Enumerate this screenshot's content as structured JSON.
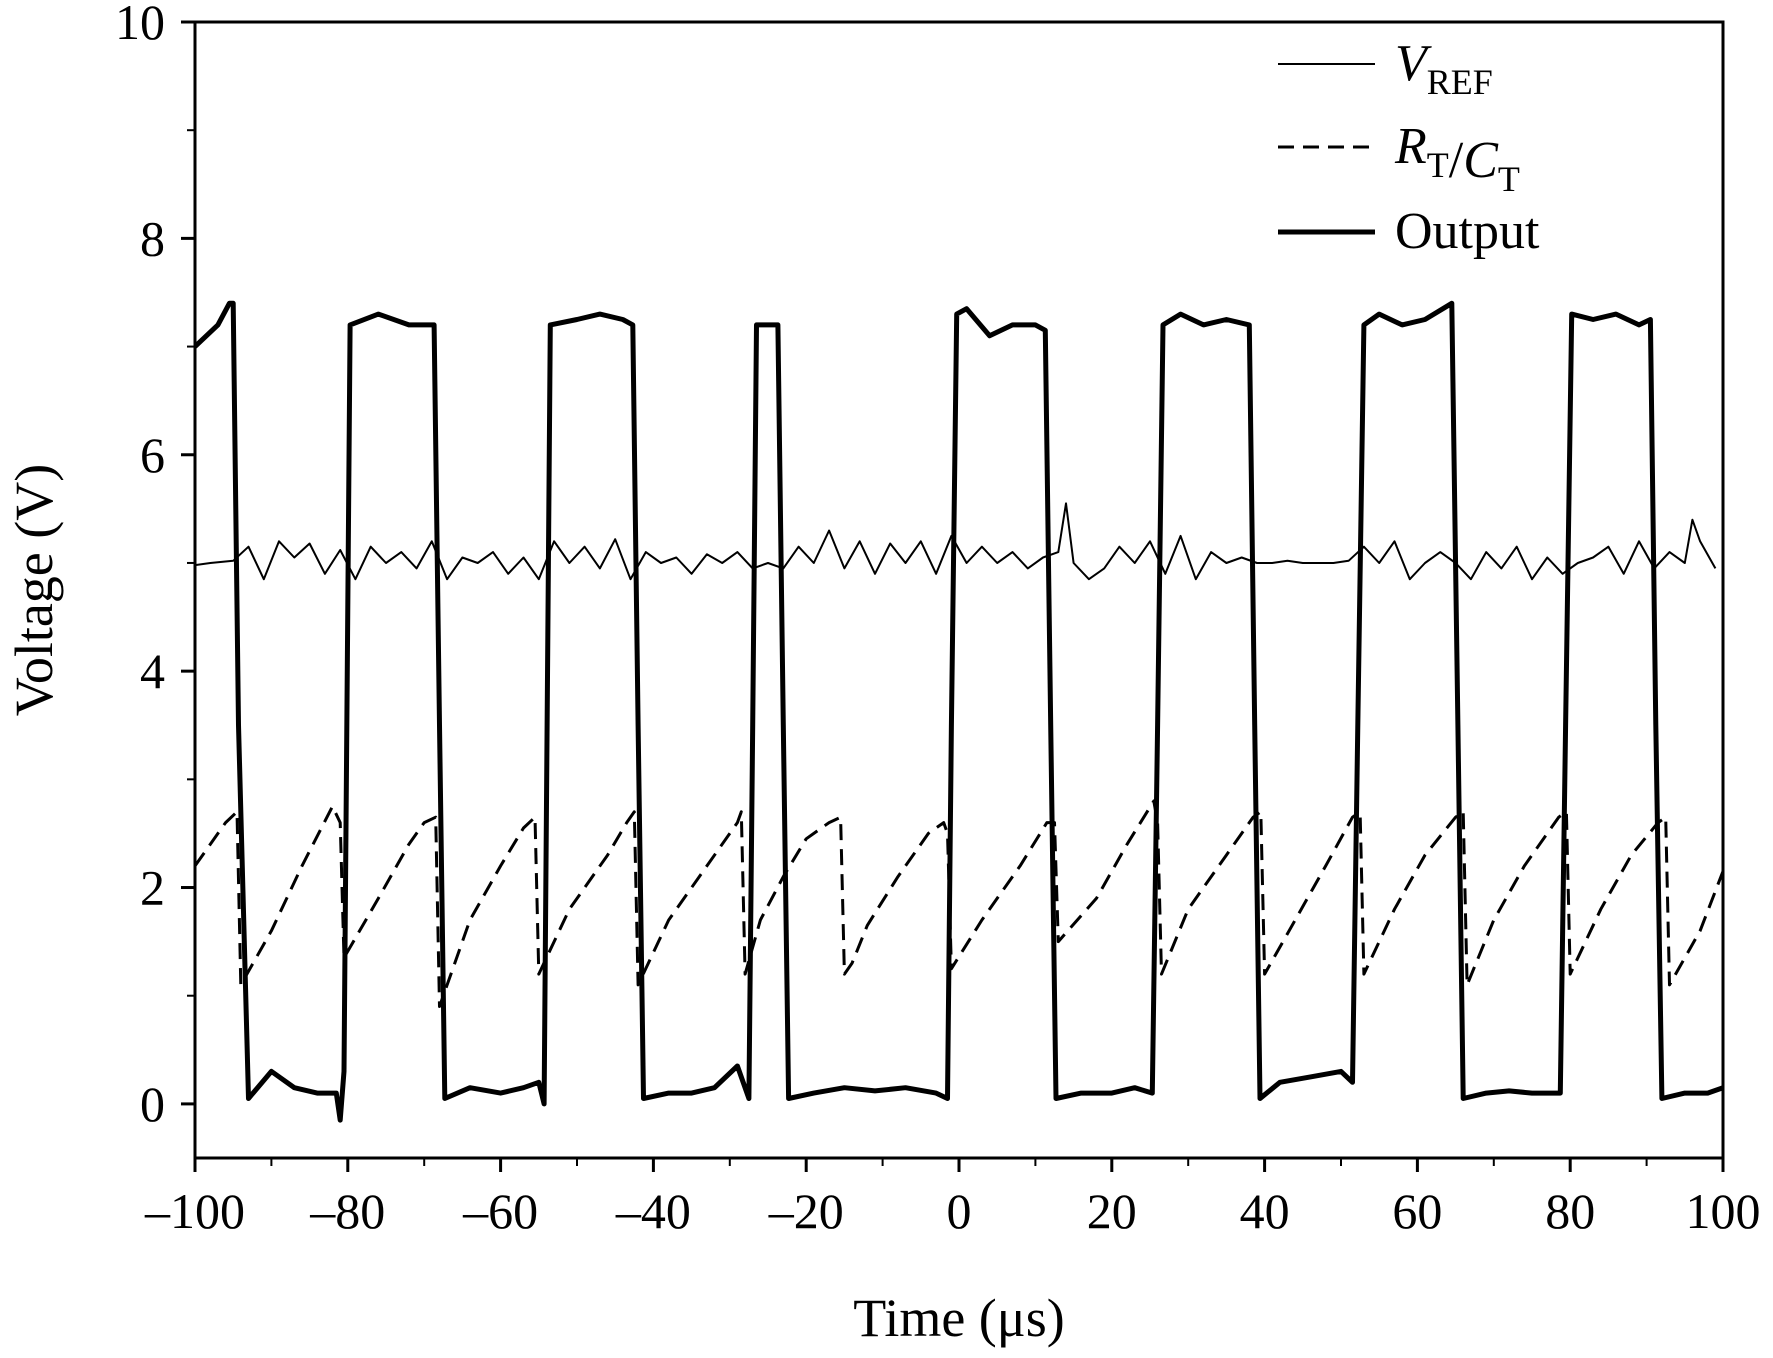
{
  "chart_data": {
    "type": "line",
    "xlabel": "Time (μs)",
    "ylabel": "Voltage (V)",
    "xlim": [
      -100,
      100
    ],
    "ylim": [
      -0.5,
      10
    ],
    "x_ticks": [
      -100,
      -80,
      -60,
      -40,
      -20,
      0,
      20,
      40,
      60,
      80,
      100
    ],
    "x_tick_labels": [
      "–100",
      "–80",
      "–60",
      "–40",
      "–20",
      "0",
      "20",
      "40",
      "60",
      "80",
      "100"
    ],
    "y_ticks": [
      0,
      2,
      4,
      6,
      8,
      10
    ],
    "y_tick_labels": [
      "0",
      "2",
      "4",
      "6",
      "8",
      "10"
    ],
    "grid": false,
    "legend_position": "top-right",
    "legend": [
      {
        "key": "vref",
        "main": "V",
        "sub": "REF",
        "style": "thin solid"
      },
      {
        "key": "rtct",
        "main1": "R",
        "sub1": "T",
        "sep": "/",
        "main2": "C",
        "sub2": "T",
        "style": "dashed"
      },
      {
        "key": "output",
        "label": "Output",
        "style": "thick solid"
      }
    ],
    "series": [
      {
        "key": "vref",
        "x": [
          -100,
          -98,
          -95,
          -93,
          -91,
          -89,
          -87,
          -85,
          -83,
          -81,
          -79,
          -77,
          -75,
          -73,
          -71,
          -69,
          -67,
          -65,
          -63,
          -61,
          -59,
          -57,
          -55,
          -53,
          -51,
          -49,
          -47,
          -45,
          -43,
          -41,
          -39,
          -37,
          -35,
          -33,
          -31,
          -29,
          -27,
          -25,
          -23,
          -21,
          -19,
          -17,
          -15,
          -13,
          -11,
          -9,
          -7,
          -5,
          -3,
          -1,
          1,
          3,
          5,
          7,
          9,
          11,
          13,
          14,
          15,
          17,
          19,
          21,
          23,
          25,
          27,
          29,
          31,
          33,
          35,
          37,
          39,
          41,
          43,
          45,
          47,
          49,
          51,
          53,
          55,
          57,
          59,
          61,
          63,
          65,
          67,
          69,
          71,
          73,
          75,
          77,
          79,
          81,
          83,
          85,
          87,
          89,
          91,
          93,
          95,
          96,
          97,
          99
        ],
        "y": [
          4.98,
          5.0,
          5.02,
          5.15,
          4.85,
          5.2,
          5.05,
          5.18,
          4.9,
          5.12,
          4.85,
          5.15,
          5.0,
          5.1,
          4.95,
          5.2,
          4.85,
          5.05,
          5.0,
          5.1,
          4.9,
          5.05,
          4.85,
          5.2,
          5.0,
          5.15,
          4.95,
          5.22,
          4.85,
          5.1,
          5.0,
          5.05,
          4.9,
          5.08,
          5.0,
          5.1,
          4.95,
          5.0,
          4.95,
          5.15,
          5.0,
          5.3,
          4.95,
          5.2,
          4.9,
          5.18,
          5.0,
          5.2,
          4.9,
          5.25,
          5.0,
          5.15,
          5.0,
          5.1,
          4.95,
          5.05,
          5.1,
          5.55,
          5.0,
          4.85,
          4.95,
          5.15,
          5.0,
          5.2,
          4.9,
          5.25,
          4.85,
          5.1,
          5.0,
          5.05,
          5.0,
          5.0,
          5.02,
          5.0,
          5.0,
          5.0,
          5.02,
          5.15,
          5.0,
          5.2,
          4.85,
          5.0,
          5.1,
          5.0,
          4.85,
          5.1,
          4.95,
          5.15,
          4.85,
          5.05,
          4.9,
          5.0,
          5.05,
          5.15,
          4.9,
          5.2,
          4.95,
          5.1,
          5.0,
          5.4,
          5.2,
          4.95
        ]
      },
      {
        "key": "rtct",
        "x": [
          -100,
          -96,
          -94.5,
          -94,
          -90,
          -86,
          -82,
          -81,
          -80.5,
          -76,
          -72,
          -70,
          -68.5,
          -68,
          -64,
          -60,
          -57,
          -55.5,
          -55,
          -51,
          -46,
          -43.5,
          -42.5,
          -42,
          -38,
          -33,
          -29,
          -28.5,
          -28,
          -26,
          -23,
          -20,
          -17,
          -15.5,
          -15,
          -14,
          -12,
          -8,
          -4,
          -2,
          -1.5,
          -1,
          3,
          8,
          11.5,
          12.5,
          13,
          18,
          22,
          25.5,
          26,
          26.5,
          30,
          35,
          38.5,
          39.5,
          40,
          44,
          48,
          51.5,
          52.5,
          53,
          57,
          61,
          65,
          66,
          66.5,
          70,
          74,
          78.5,
          79.5,
          80,
          84,
          88,
          91.5,
          92.5,
          93,
          97,
          100
        ],
        "y": [
          2.2,
          2.6,
          2.7,
          1.1,
          1.6,
          2.2,
          2.75,
          2.6,
          1.35,
          1.9,
          2.4,
          2.6,
          2.65,
          0.9,
          1.7,
          2.2,
          2.55,
          2.65,
          1.2,
          1.8,
          2.3,
          2.6,
          2.7,
          1.1,
          1.7,
          2.2,
          2.6,
          2.7,
          1.2,
          1.7,
          2.1,
          2.45,
          2.6,
          2.65,
          1.2,
          1.3,
          1.65,
          2.1,
          2.5,
          2.6,
          2.5,
          1.25,
          1.7,
          2.2,
          2.6,
          2.6,
          1.5,
          1.9,
          2.4,
          2.8,
          2.6,
          1.2,
          1.8,
          2.3,
          2.65,
          2.7,
          1.2,
          1.7,
          2.2,
          2.65,
          2.7,
          1.2,
          1.8,
          2.3,
          2.65,
          2.7,
          1.1,
          1.7,
          2.2,
          2.65,
          2.7,
          1.2,
          1.8,
          2.3,
          2.6,
          2.65,
          1.1,
          1.6,
          2.15
        ]
      },
      {
        "key": "output",
        "x": [
          -100,
          -97,
          -95.5,
          -95,
          -94.3,
          -93,
          -90,
          -87,
          -84,
          -81.5,
          -81,
          -80.5,
          -79.7,
          -76,
          -72,
          -70,
          -68.7,
          -68,
          -67.3,
          -64,
          -60,
          -57,
          -55,
          -54.3,
          -53.5,
          -50,
          -47,
          -44,
          -42.7,
          -42,
          -41.3,
          -38,
          -35,
          -32,
          -29,
          -27.5,
          -27,
          -26.5,
          -25,
          -23.7,
          -23,
          -22.3,
          -19,
          -15,
          -11,
          -7,
          -3,
          -1.5,
          -1,
          -0.3,
          1,
          4,
          7,
          10,
          11.3,
          12,
          12.7,
          16,
          20,
          23,
          25.3,
          26,
          26.7,
          29,
          32,
          35,
          38,
          38.7,
          39.4,
          42,
          46,
          50,
          51.5,
          52.2,
          53,
          55,
          58,
          61,
          64.5,
          65.3,
          66,
          69,
          72,
          75,
          78.7,
          79.4,
          80.2,
          83,
          86,
          89,
          90.5,
          91.2,
          92,
          95,
          98,
          100
        ],
        "y": [
          7.0,
          7.2,
          7.4,
          7.4,
          3.5,
          0.05,
          0.3,
          0.15,
          0.1,
          0.1,
          -0.15,
          0.3,
          7.2,
          7.3,
          7.2,
          7.2,
          7.2,
          3.5,
          0.05,
          0.15,
          0.1,
          0.15,
          0.2,
          0.0,
          7.2,
          7.25,
          7.3,
          7.25,
          7.2,
          3.5,
          0.05,
          0.1,
          0.1,
          0.15,
          0.35,
          0.05,
          3.5,
          7.2,
          7.2,
          7.2,
          3.5,
          0.05,
          0.1,
          0.15,
          0.12,
          0.15,
          0.1,
          0.05,
          3.5,
          7.3,
          7.35,
          7.1,
          7.2,
          7.2,
          7.15,
          3.5,
          0.05,
          0.1,
          0.1,
          0.15,
          0.1,
          3.5,
          7.2,
          7.3,
          7.2,
          7.25,
          7.2,
          3.5,
          0.05,
          0.2,
          0.25,
          0.3,
          0.2,
          3.5,
          7.2,
          7.3,
          7.2,
          7.25,
          7.4,
          3.5,
          0.05,
          0.1,
          0.12,
          0.1,
          0.1,
          3.5,
          7.3,
          7.25,
          7.3,
          7.2,
          7.25,
          3.5,
          0.05,
          0.1,
          0.1,
          0.15
        ]
      }
    ]
  }
}
